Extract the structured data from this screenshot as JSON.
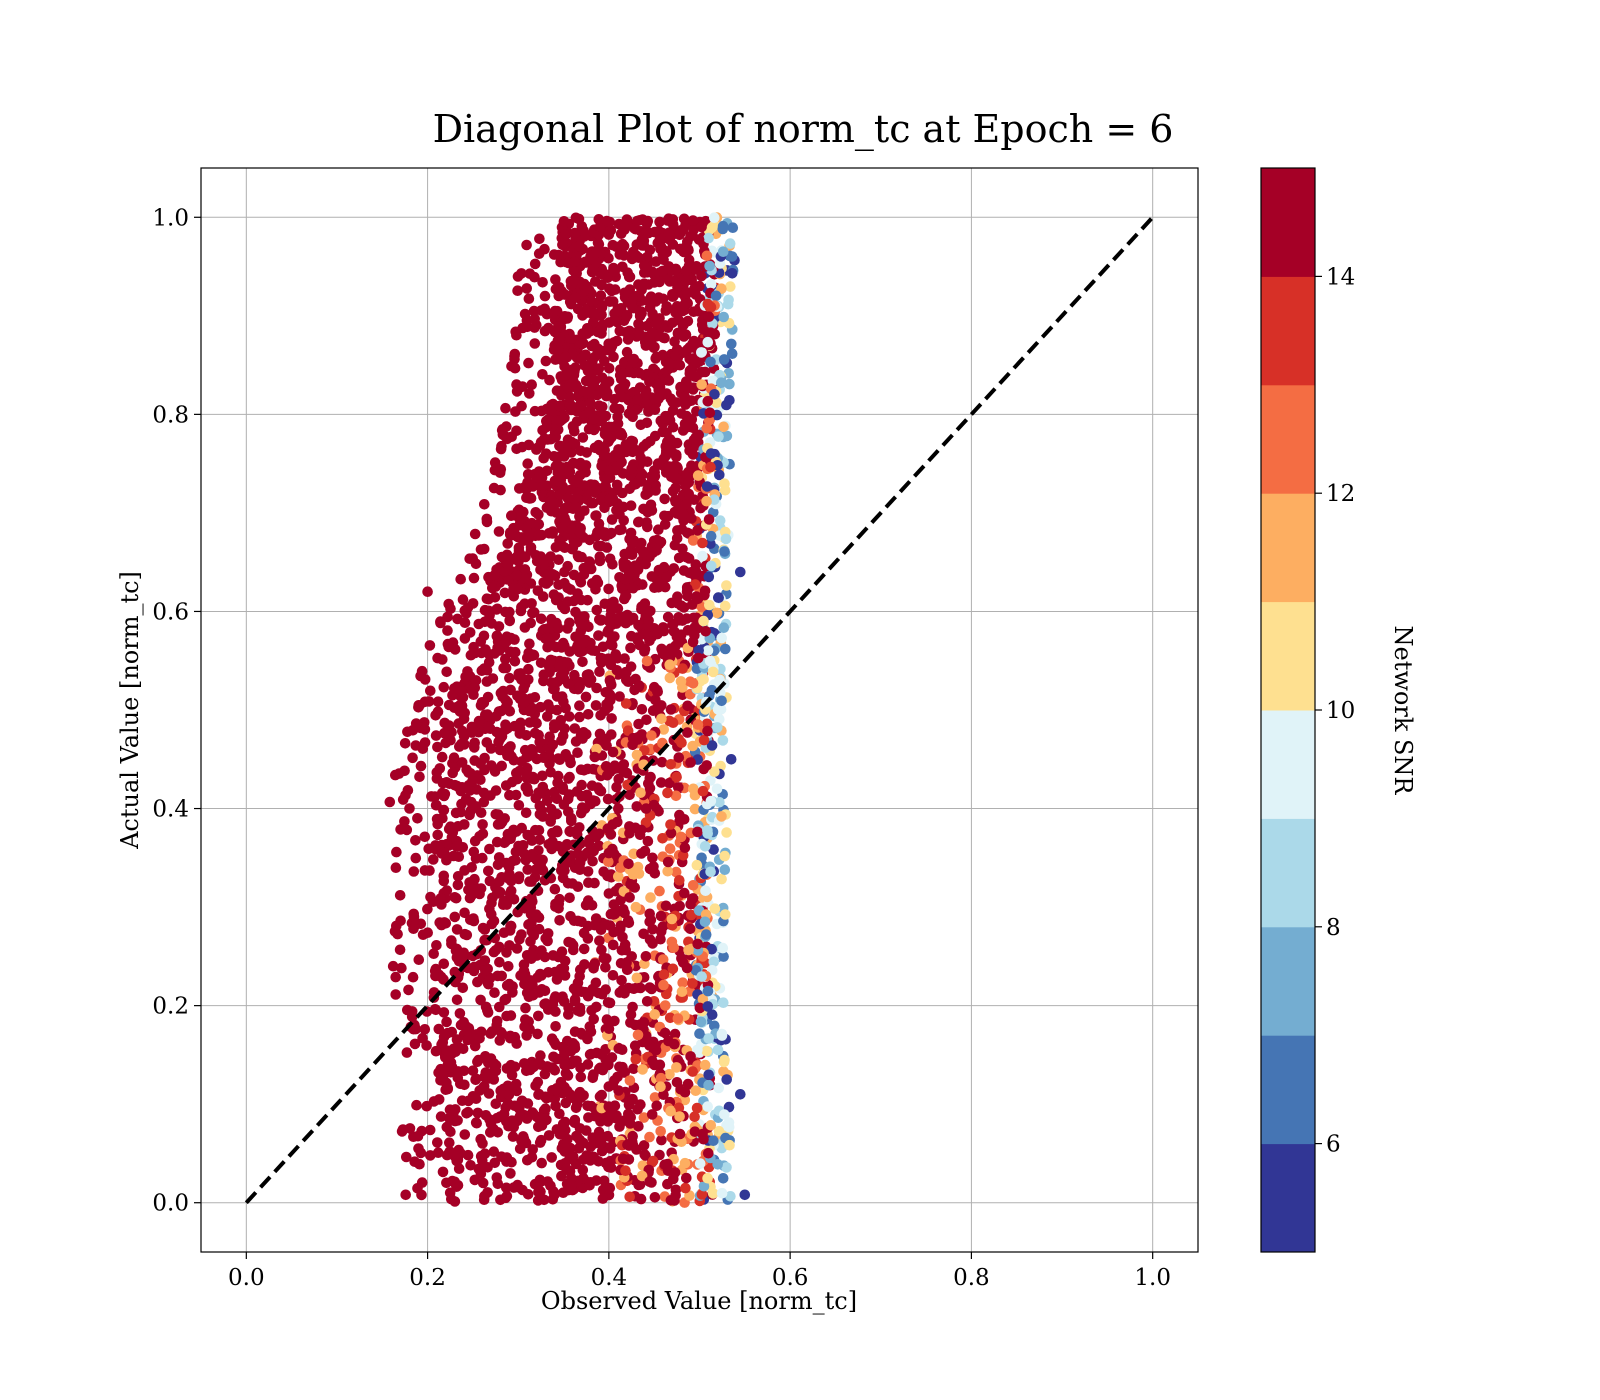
{
  "chart_data": {
    "type": "scatter",
    "title": "Diagonal Plot of norm_tc at Epoch = 6",
    "xlabel": "Observed Value [norm_tc]",
    "ylabel": "Actual Value [norm_tc]",
    "xlim": [
      -0.05,
      1.05
    ],
    "ylim": [
      -0.05,
      1.05
    ],
    "x_ticks": [
      "0.0",
      "0.2",
      "0.4",
      "0.6",
      "0.8",
      "1.0"
    ],
    "y_ticks": [
      "0.0",
      "0.2",
      "0.4",
      "0.6",
      "0.8",
      "1.0"
    ],
    "grid": true,
    "reference_line": {
      "style": "dashed",
      "color": "#000000",
      "from": [
        0,
        0
      ],
      "to": [
        1,
        1
      ]
    },
    "colorbar": {
      "label": "Network SNR",
      "range": [
        5,
        15
      ],
      "ticks": [
        "6",
        "8",
        "10",
        "12",
        "14"
      ],
      "colors": [
        "#313695",
        "#4575b4",
        "#74add1",
        "#abd9e9",
        "#e0f3f8",
        "#fee090",
        "#fdae61",
        "#f46d43",
        "#d73027",
        "#a50026"
      ]
    },
    "cloud": {
      "y_extent": [
        0.0,
        1.0
      ],
      "left_edge": [
        [
          0.0,
          0.22
        ],
        [
          0.2,
          0.205
        ],
        [
          0.4,
          0.2
        ],
        [
          0.5,
          0.22
        ],
        [
          0.6,
          0.26
        ],
        [
          0.7,
          0.3
        ],
        [
          0.8,
          0.33
        ],
        [
          0.9,
          0.34
        ],
        [
          1.0,
          0.35
        ]
      ],
      "right_edge": [
        [
          0.0,
          0.525
        ],
        [
          0.2,
          0.52
        ],
        [
          0.4,
          0.52
        ],
        [
          0.6,
          0.52
        ],
        [
          0.8,
          0.525
        ],
        [
          1.0,
          0.53
        ]
      ],
      "dominant_snr": 15
    }
  }
}
